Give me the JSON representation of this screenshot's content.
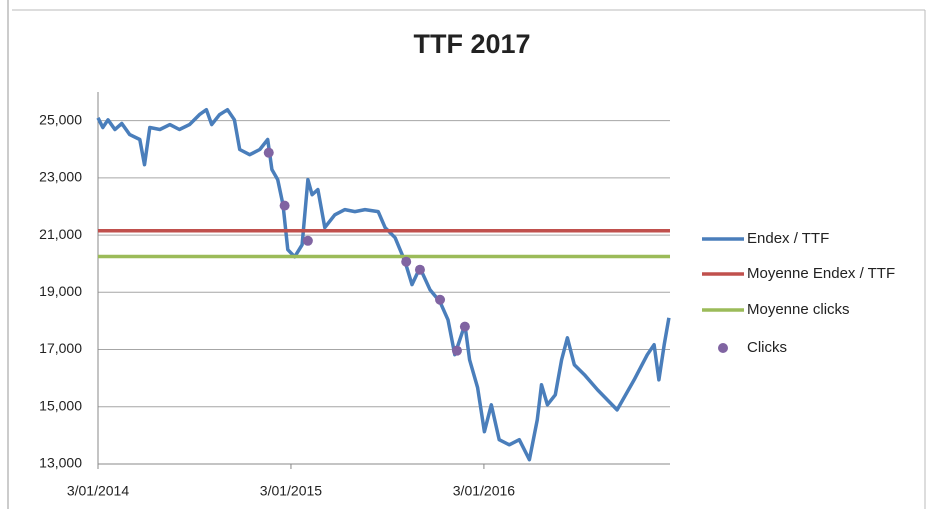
{
  "chart_data": {
    "type": "line",
    "title": "TTF 2017",
    "xlim": [
      "2014-01-03",
      "2016-12-20"
    ],
    "xticks": [
      {
        "value": "2014-01-03",
        "label": "3/01/2014"
      },
      {
        "value": "2015-01-03",
        "label": "3/01/2015"
      },
      {
        "value": "2016-01-03",
        "label": "3/01/2016"
      }
    ],
    "ylim": [
      13000,
      26000
    ],
    "yticks": [
      {
        "value": 13000,
        "label": "13,000"
      },
      {
        "value": 15000,
        "label": "15,000"
      },
      {
        "value": 17000,
        "label": "17,000"
      },
      {
        "value": 19000,
        "label": "19,000"
      },
      {
        "value": 21000,
        "label": "21,000"
      },
      {
        "value": 23000,
        "label": "23,000"
      },
      {
        "value": 25000,
        "label": "25,000"
      }
    ],
    "grid": true,
    "legend": "right",
    "series": [
      {
        "name": "Endex / TTF",
        "type": "line",
        "color": "#4a7ebb",
        "x": [
          "2014-01-03",
          "2014-01-12",
          "2014-01-22",
          "2014-02-04",
          "2014-02-17",
          "2014-03-04",
          "2014-03-23",
          "2014-04-01",
          "2014-04-11",
          "2014-04-30",
          "2014-05-19",
          "2014-06-06",
          "2014-06-25",
          "2014-07-14",
          "2014-07-27",
          "2014-08-06",
          "2014-08-21",
          "2014-09-05",
          "2014-09-18",
          "2014-09-28",
          "2014-10-17",
          "2014-11-05",
          "2014-11-20",
          "2014-11-28",
          "2014-12-09",
          "2014-12-19",
          "2014-12-28",
          "2015-01-10",
          "2015-01-24",
          "2015-02-04",
          "2015-02-12",
          "2015-02-23",
          "2015-03-08",
          "2015-03-27",
          "2015-04-15",
          "2015-05-04",
          "2015-05-23",
          "2015-06-17",
          "2015-06-30",
          "2015-07-19",
          "2015-08-07",
          "2015-08-20",
          "2015-09-04",
          "2015-09-23",
          "2015-10-12",
          "2015-10-27",
          "2015-11-09",
          "2015-11-28",
          "2015-12-07",
          "2015-12-22",
          "2016-01-04",
          "2016-01-17",
          "2016-02-01",
          "2016-02-20",
          "2016-03-10",
          "2016-03-29",
          "2016-04-13",
          "2016-04-21",
          "2016-05-02",
          "2016-05-17",
          "2016-05-29",
          "2016-06-09",
          "2016-06-22",
          "2016-07-11",
          "2016-08-05",
          "2016-09-11",
          "2016-10-13",
          "2016-11-07",
          "2016-11-20",
          "2016-11-29",
          "2016-12-09",
          "2016-12-18"
        ],
        "values": [
          25100,
          24760,
          25030,
          24690,
          24900,
          24510,
          24340,
          23460,
          24760,
          24690,
          24860,
          24690,
          24860,
          25210,
          25380,
          24860,
          25210,
          25380,
          25030,
          23990,
          23810,
          23990,
          24340,
          23290,
          22940,
          22060,
          20490,
          20240,
          20660,
          22940,
          22410,
          22590,
          21260,
          21710,
          21890,
          21820,
          21890,
          21820,
          21260,
          20910,
          20070,
          19270,
          19860,
          19090,
          18670,
          18040,
          16820,
          17870,
          16640,
          15670,
          14130,
          15070,
          13850,
          13670,
          13850,
          13150,
          14550,
          15770,
          15070,
          15420,
          16640,
          17410,
          16470,
          16120,
          15590,
          14890,
          15940,
          16820,
          17170,
          15940,
          17170,
          18110
        ]
      },
      {
        "name": "Moyenne Endex / TTF",
        "type": "line",
        "color": "#c0504d",
        "x": [
          "2014-01-03",
          "2016-12-20"
        ],
        "values": [
          21150,
          21150
        ]
      },
      {
        "name": "Moyenne clicks",
        "type": "line",
        "color": "#9bbb59",
        "x": [
          "2014-01-03",
          "2016-12-20"
        ],
        "values": [
          20250,
          20250
        ]
      },
      {
        "name": "Clicks",
        "type": "scatter",
        "color": "#8064a2",
        "x": [
          "2014-11-22",
          "2014-12-22",
          "2015-02-04",
          "2015-08-09",
          "2015-09-04",
          "2015-10-12",
          "2015-11-13",
          "2015-11-28"
        ],
        "values": [
          23880,
          22030,
          20800,
          20070,
          19790,
          18740,
          16960,
          17800
        ]
      }
    ]
  }
}
